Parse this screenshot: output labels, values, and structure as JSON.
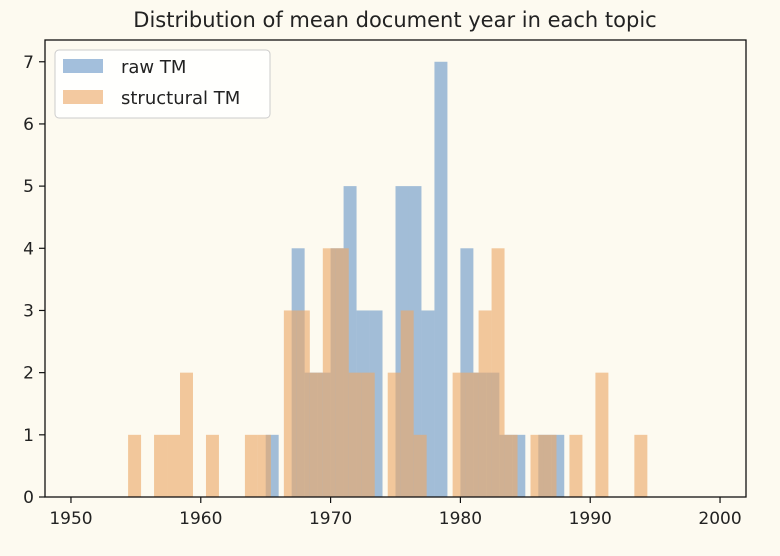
{
  "chart_data": {
    "type": "bar",
    "title": "Distribution of mean document year in each topic",
    "xlabel": "",
    "ylabel": "",
    "xlim": [
      1948,
      2002
    ],
    "ylim": [
      0,
      7.35
    ],
    "xticks": [
      1950,
      1960,
      1970,
      1980,
      1990,
      2000
    ],
    "yticks": [
      0,
      1,
      2,
      3,
      4,
      5,
      6,
      7
    ],
    "grid": false,
    "legend_position": "top-left",
    "series": [
      {
        "name": "raw TM",
        "color": "#6a98c8",
        "bins": [
          {
            "x0": 1965.0,
            "x1": 1966.0,
            "count": 1
          },
          {
            "x0": 1967.0,
            "x1": 1968.0,
            "count": 4
          },
          {
            "x0": 1968.0,
            "x1": 1969.0,
            "count": 2
          },
          {
            "x0": 1969.0,
            "x1": 1970.0,
            "count": 2
          },
          {
            "x0": 1970.0,
            "x1": 1971.0,
            "count": 4
          },
          {
            "x0": 1971.0,
            "x1": 1972.0,
            "count": 5
          },
          {
            "x0": 1972.0,
            "x1": 1973.0,
            "count": 3
          },
          {
            "x0": 1973.0,
            "x1": 1974.0,
            "count": 3
          },
          {
            "x0": 1975.0,
            "x1": 1976.0,
            "count": 5
          },
          {
            "x0": 1976.0,
            "x1": 1977.0,
            "count": 5
          },
          {
            "x0": 1977.0,
            "x1": 1978.0,
            "count": 3
          },
          {
            "x0": 1978.0,
            "x1": 1979.0,
            "count": 7
          },
          {
            "x0": 1980.0,
            "x1": 1981.0,
            "count": 4
          },
          {
            "x0": 1981.0,
            "x1": 1982.0,
            "count": 2
          },
          {
            "x0": 1982.0,
            "x1": 1983.0,
            "count": 2
          },
          {
            "x0": 1983.0,
            "x1": 1984.0,
            "count": 1
          },
          {
            "x0": 1984.0,
            "x1": 1985.0,
            "count": 1
          },
          {
            "x0": 1986.0,
            "x1": 1987.0,
            "count": 1
          },
          {
            "x0": 1987.0,
            "x1": 1988.0,
            "count": 1
          }
        ]
      },
      {
        "name": "structural TM",
        "color": "#eba868",
        "bins": [
          {
            "x0": 1954.4,
            "x1": 1955.4,
            "count": 1
          },
          {
            "x0": 1956.4,
            "x1": 1957.4,
            "count": 1
          },
          {
            "x0": 1957.4,
            "x1": 1958.4,
            "count": 1
          },
          {
            "x0": 1958.4,
            "x1": 1959.4,
            "count": 2
          },
          {
            "x0": 1960.4,
            "x1": 1961.4,
            "count": 1
          },
          {
            "x0": 1963.4,
            "x1": 1964.4,
            "count": 1
          },
          {
            "x0": 1964.4,
            "x1": 1965.4,
            "count": 1
          },
          {
            "x0": 1966.4,
            "x1": 1967.4,
            "count": 3
          },
          {
            "x0": 1967.4,
            "x1": 1968.4,
            "count": 3
          },
          {
            "x0": 1968.4,
            "x1": 1969.4,
            "count": 2
          },
          {
            "x0": 1969.4,
            "x1": 1970.4,
            "count": 4
          },
          {
            "x0": 1970.4,
            "x1": 1971.4,
            "count": 4
          },
          {
            "x0": 1971.4,
            "x1": 1972.4,
            "count": 2
          },
          {
            "x0": 1972.4,
            "x1": 1973.4,
            "count": 2
          },
          {
            "x0": 1974.4,
            "x1": 1975.4,
            "count": 2
          },
          {
            "x0": 1975.4,
            "x1": 1976.4,
            "count": 3
          },
          {
            "x0": 1976.4,
            "x1": 1977.4,
            "count": 1
          },
          {
            "x0": 1979.4,
            "x1": 1980.4,
            "count": 2
          },
          {
            "x0": 1980.4,
            "x1": 1981.4,
            "count": 2
          },
          {
            "x0": 1981.4,
            "x1": 1982.4,
            "count": 3
          },
          {
            "x0": 1982.4,
            "x1": 1983.4,
            "count": 4
          },
          {
            "x0": 1983.4,
            "x1": 1984.4,
            "count": 1
          },
          {
            "x0": 1985.4,
            "x1": 1986.4,
            "count": 1
          },
          {
            "x0": 1986.4,
            "x1": 1987.4,
            "count": 1
          },
          {
            "x0": 1988.4,
            "x1": 1989.4,
            "count": 1
          },
          {
            "x0": 1990.4,
            "x1": 1991.4,
            "count": 2
          },
          {
            "x0": 1993.4,
            "x1": 1994.4,
            "count": 1
          }
        ]
      }
    ]
  }
}
